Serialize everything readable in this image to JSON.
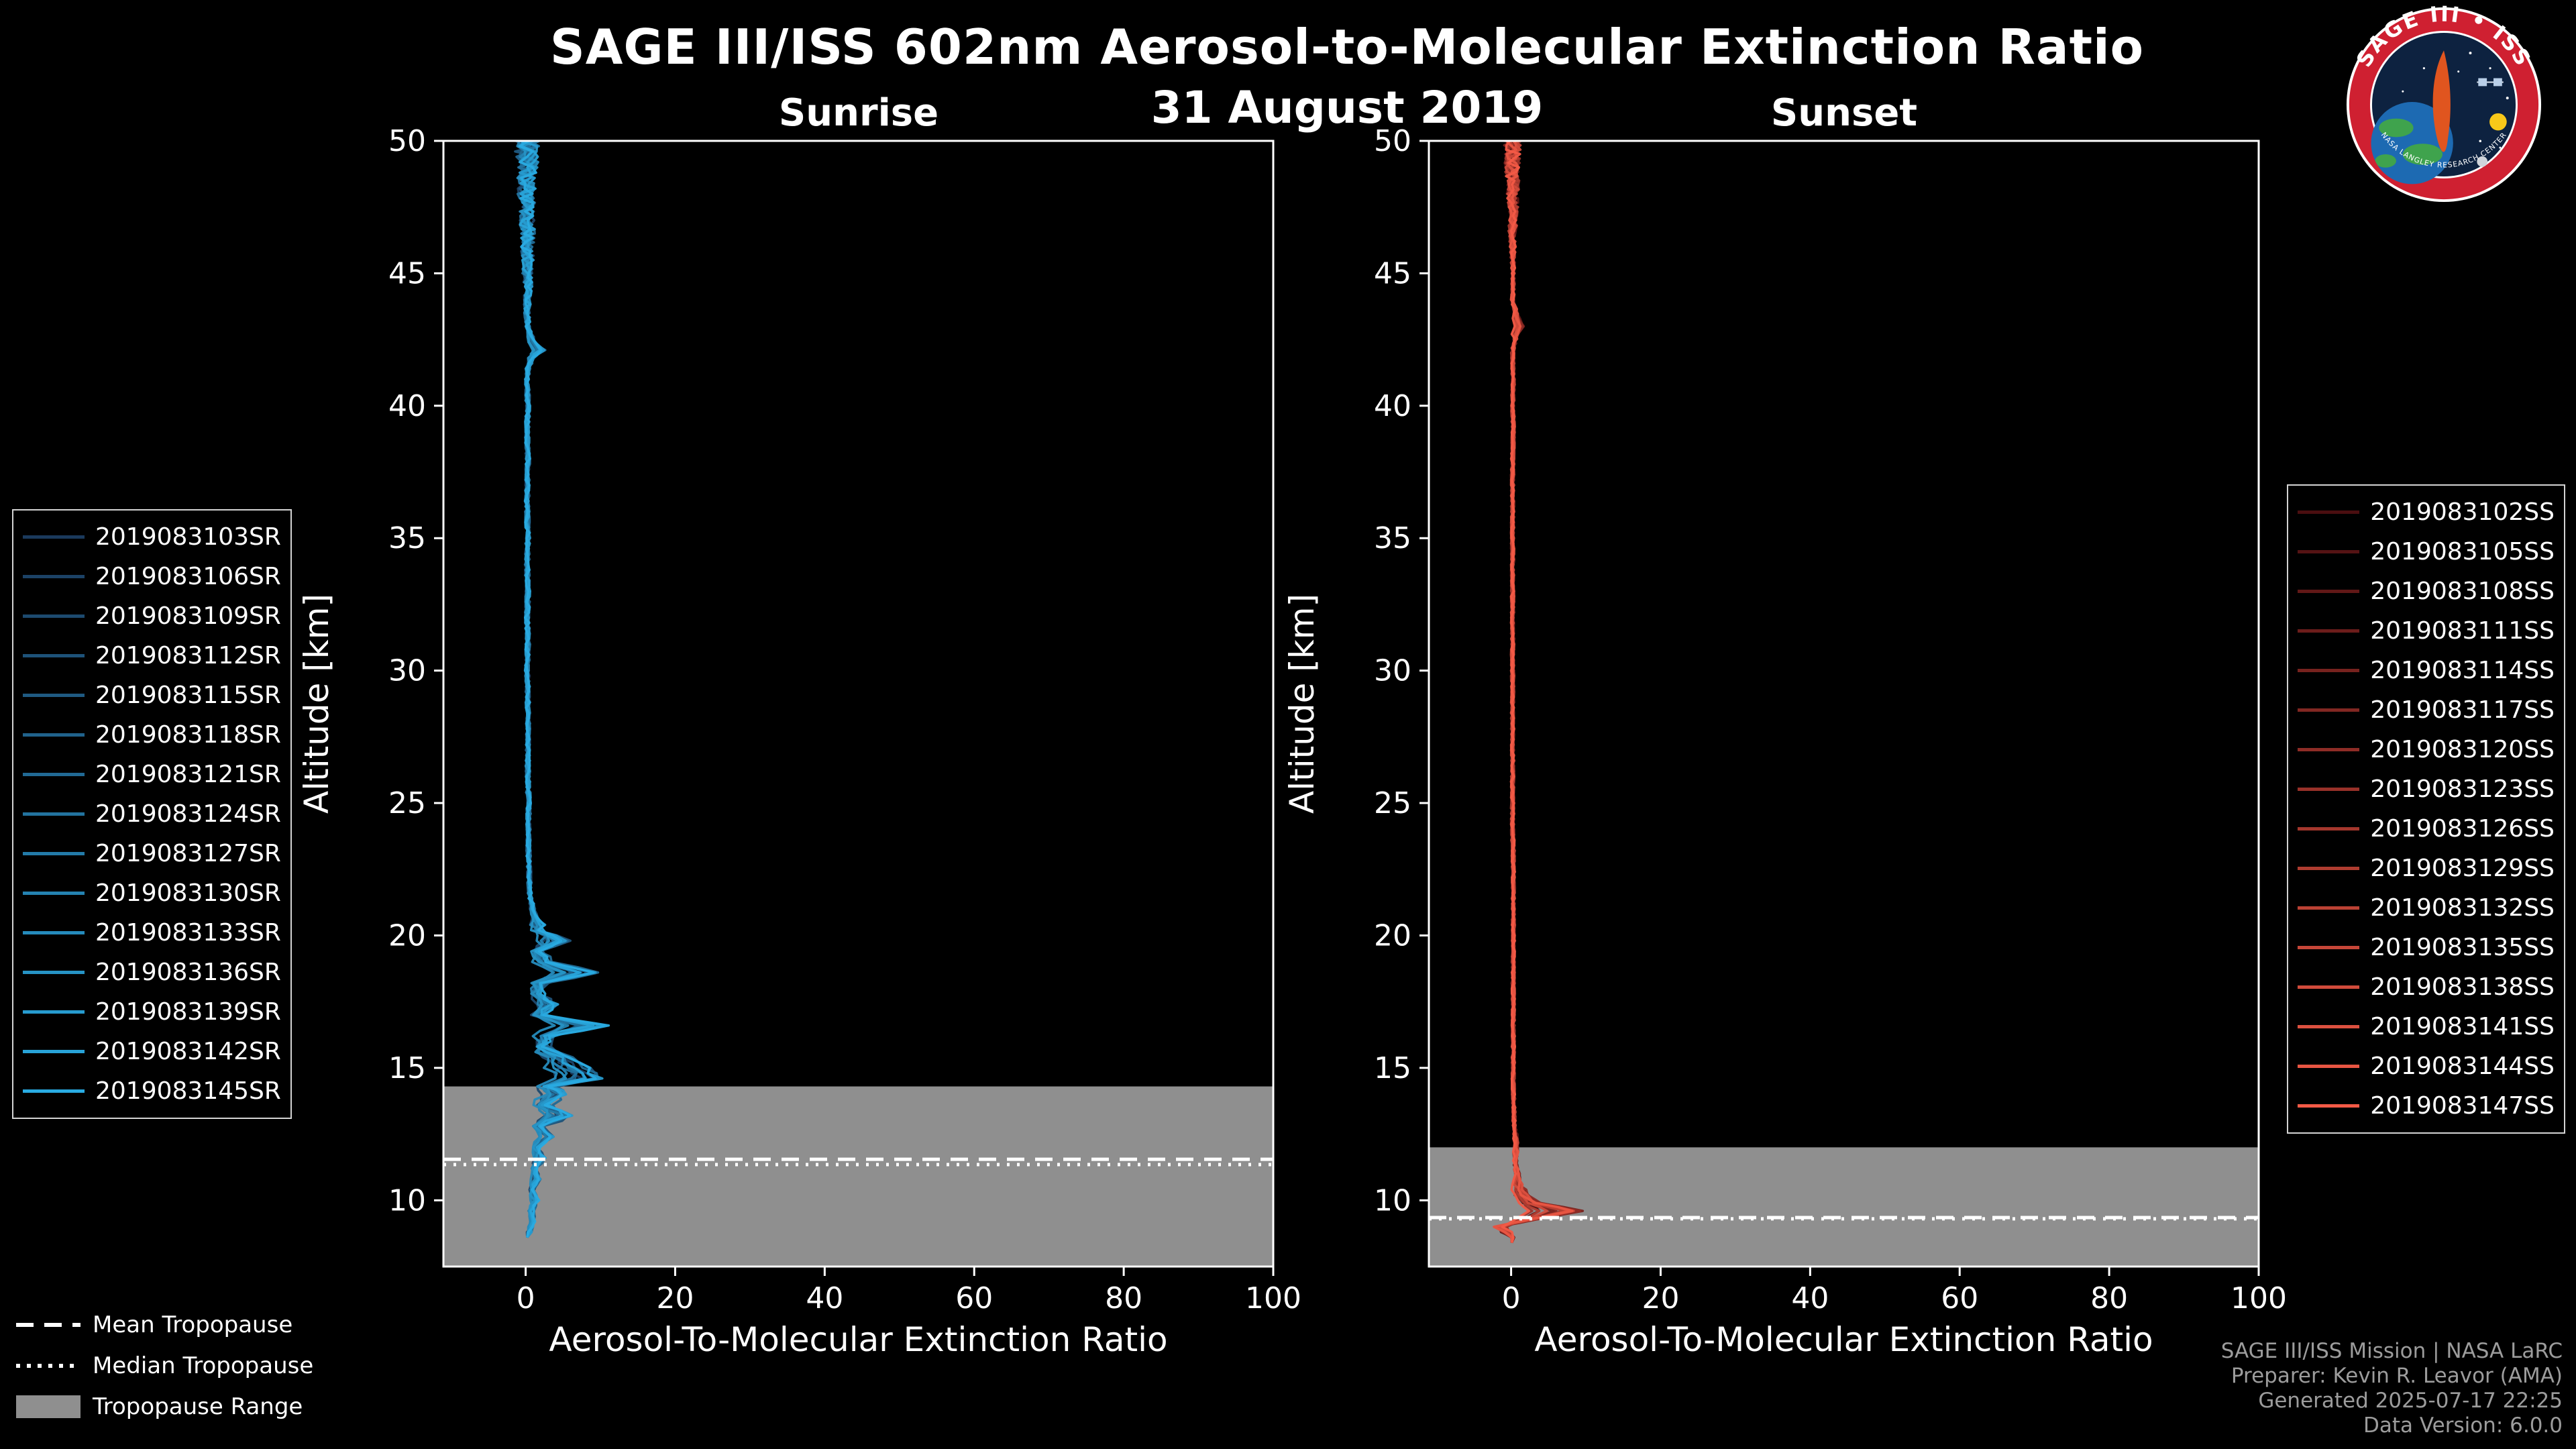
{
  "page": {
    "title": "SAGE III/ISS 602nm Aerosol-to-Molecular Extinction Ratio",
    "subtitle": "31 August 2019",
    "background": "#000000"
  },
  "logo": {
    "text": "SAGE III • ISS",
    "bottom_text": "NASA LANGLEY RESEARCH CENTER",
    "ring_color": "#cf2031",
    "inner_color": "#0d2240"
  },
  "tropopause_legend": {
    "mean_label": "Mean Tropopause",
    "median_label": "Median Tropopause",
    "range_label": "Tropopause Range"
  },
  "credits": {
    "line1": "SAGE III/ISS Mission | NASA LaRC",
    "line2": "Preparer: Kevin R. Leavor (AMA)",
    "line3": "Generated 2025-07-17 22:25",
    "line4": "Data Version: 6.0.0",
    "color": "#9c9c9c"
  },
  "chart_data": [
    {
      "type": "line",
      "title": "Sunrise",
      "xlabel": "Aerosol-To-Molecular Extinction Ratio",
      "ylabel": "Altitude [km]",
      "xlim": [
        -11,
        100
      ],
      "ylim": [
        7.5,
        50
      ],
      "xticks": [
        0,
        20,
        40,
        60,
        80,
        100
      ],
      "yticks": [
        10,
        15,
        20,
        25,
        30,
        35,
        40,
        45,
        50
      ],
      "legend_side": "left",
      "seed": 11,
      "tropopause": {
        "mean": 11.55,
        "median": 11.35,
        "range_top": 14.3,
        "range_bottom": 7.5,
        "band_color": "#8f8f8f"
      },
      "noise": {
        "base": 0.3,
        "top_amp": 1.3,
        "top_start": 43,
        "mid_from": 13,
        "mid_to": 20.5,
        "mid_amp": 0.5,
        "spike_min": 0.3,
        "spike_span": 0.95,
        "step": 0.2
      },
      "profile": [
        [
          50,
          0.3,
          0
        ],
        [
          49.6,
          0.1,
          0
        ],
        [
          49.2,
          0.4,
          0
        ],
        [
          48.8,
          0.1,
          0
        ],
        [
          48.4,
          0.3,
          0
        ],
        [
          48,
          0.1,
          0
        ],
        [
          47.5,
          0.3,
          0
        ],
        [
          47,
          0.2,
          0
        ],
        [
          46.5,
          0.3,
          0
        ],
        [
          46,
          0.2,
          0
        ],
        [
          45.5,
          0.3,
          0
        ],
        [
          45,
          0.2,
          0
        ],
        [
          44.5,
          0.3,
          0
        ],
        [
          44,
          0.2,
          0
        ],
        [
          43.5,
          0.2,
          0
        ],
        [
          43,
          0.3,
          0
        ],
        [
          42.4,
          0.2,
          0.8
        ],
        [
          42.1,
          0.3,
          1.8
        ],
        [
          41.8,
          0.2,
          0.7
        ],
        [
          41.4,
          0.3,
          0
        ],
        [
          41,
          0.2,
          0
        ],
        [
          40,
          0.3,
          0
        ],
        [
          39,
          0.2,
          0
        ],
        [
          38,
          0.3,
          0
        ],
        [
          37,
          0.2,
          0
        ],
        [
          36,
          0.2,
          0
        ],
        [
          35,
          0.3,
          0
        ],
        [
          34,
          0.2,
          0
        ],
        [
          33,
          0.3,
          0
        ],
        [
          32,
          0.2,
          0
        ],
        [
          31,
          0.3,
          0
        ],
        [
          30,
          0.2,
          0
        ],
        [
          29,
          0.3,
          0
        ],
        [
          28,
          0.3,
          0
        ],
        [
          27,
          0.3,
          0
        ],
        [
          26,
          0.3,
          0
        ],
        [
          25,
          0.4,
          0
        ],
        [
          24,
          0.4,
          0
        ],
        [
          23,
          0.4,
          0
        ],
        [
          22,
          0.5,
          0
        ],
        [
          21.4,
          0.6,
          0
        ],
        [
          20.8,
          0.7,
          0.6
        ],
        [
          20.2,
          0.8,
          1.2
        ],
        [
          19.8,
          0.6,
          4.2
        ],
        [
          19.4,
          0.8,
          1.0
        ],
        [
          19,
          0.7,
          2.2
        ],
        [
          18.6,
          0.8,
          7.2
        ],
        [
          18.2,
          0.9,
          1.6
        ],
        [
          17.8,
          0.8,
          1.0
        ],
        [
          17.4,
          0.9,
          2.4
        ],
        [
          17,
          0.8,
          1.2
        ],
        [
          16.6,
          1.0,
          8.4
        ],
        [
          16.2,
          0.9,
          2.0
        ],
        [
          15.8,
          1.0,
          1.4
        ],
        [
          15.4,
          1.1,
          3.8
        ],
        [
          15,
          1.0,
          6.2
        ],
        [
          14.6,
          1.2,
          7.8
        ],
        [
          14.3,
          1.0,
          2.4
        ],
        [
          14,
          1.2,
          3.4
        ],
        [
          13.6,
          1.0,
          1.6
        ],
        [
          13.2,
          1.1,
          4.4
        ],
        [
          12.8,
          0.9,
          1.0
        ],
        [
          12.4,
          1.0,
          2.2
        ],
        [
          12,
          0.8,
          0.8
        ],
        [
          11.6,
          0.6,
          1.6
        ],
        [
          11.2,
          0.8,
          0.5
        ],
        [
          10.8,
          0.5,
          1.1
        ],
        [
          10.4,
          0.6,
          0.3
        ],
        [
          10,
          0.5,
          0.9
        ],
        [
          9.6,
          0.3,
          0.5
        ],
        [
          9.2,
          0.4,
          0.7
        ],
        [
          8.8,
          0.2,
          0.3
        ],
        [
          8.6,
          0.2,
          0
        ]
      ],
      "series": [
        {
          "name": "2019083103SR",
          "color": "#1b3a5c"
        },
        {
          "name": "2019083106SR",
          "color": "#1c4266"
        },
        {
          "name": "2019083109SR",
          "color": "#1d4a6f"
        },
        {
          "name": "2019083112SR",
          "color": "#1e5279"
        },
        {
          "name": "2019083115SR",
          "color": "#1f5a82"
        },
        {
          "name": "2019083118SR",
          "color": "#20628c"
        },
        {
          "name": "2019083121SR",
          "color": "#216a95"
        },
        {
          "name": "2019083124SR",
          "color": "#22739f"
        },
        {
          "name": "2019083127SR",
          "color": "#237ba9"
        },
        {
          "name": "2019083130SR",
          "color": "#2483b2"
        },
        {
          "name": "2019083133SR",
          "color": "#258bbc"
        },
        {
          "name": "2019083136SR",
          "color": "#2693c5"
        },
        {
          "name": "2019083139SR",
          "color": "#279bcf"
        },
        {
          "name": "2019083142SR",
          "color": "#28a3d8"
        },
        {
          "name": "2019083145SR",
          "color": "#29abe2"
        }
      ]
    },
    {
      "type": "line",
      "title": "Sunset",
      "xlabel": "Aerosol-To-Molecular Extinction Ratio",
      "ylabel": "Altitude [km]",
      "xlim": [
        -11,
        100
      ],
      "ylim": [
        7.5,
        50
      ],
      "xticks": [
        0,
        20,
        40,
        60,
        80,
        100
      ],
      "yticks": [
        10,
        15,
        20,
        25,
        30,
        35,
        40,
        45,
        50
      ],
      "legend_side": "right",
      "seed": 99,
      "tropopause": {
        "mean": 9.35,
        "median": 9.3,
        "range_top": 12.0,
        "range_bottom": 7.5,
        "band_color": "#8f8f8f"
      },
      "noise": {
        "base": 0.22,
        "top_amp": 1.0,
        "top_start": 45,
        "mid_from": 8.8,
        "mid_to": 10.6,
        "mid_amp": 0.3,
        "spike_min": 0.15,
        "spike_span": 1.1,
        "step": 0.2
      },
      "profile": [
        [
          50,
          0.2,
          0
        ],
        [
          49.5,
          0.3,
          0
        ],
        [
          49,
          0.1,
          0
        ],
        [
          48.5,
          0.3,
          0
        ],
        [
          48,
          0.2,
          0
        ],
        [
          47.5,
          0.3,
          0
        ],
        [
          47,
          0.2,
          0
        ],
        [
          46,
          0.2,
          0
        ],
        [
          45,
          0.3,
          0
        ],
        [
          44,
          0.2,
          0
        ],
        [
          43.3,
          0.2,
          0.7
        ],
        [
          43,
          0.3,
          1.0
        ],
        [
          42.7,
          0.2,
          0.5
        ],
        [
          42,
          0.2,
          0
        ],
        [
          41,
          0.3,
          0
        ],
        [
          40,
          0.2,
          0
        ],
        [
          39,
          0.3,
          0
        ],
        [
          38,
          0.2,
          0
        ],
        [
          37,
          0.2,
          0
        ],
        [
          36,
          0.2,
          0
        ],
        [
          35,
          0.2,
          0
        ],
        [
          34,
          0.2,
          0
        ],
        [
          33,
          0.2,
          0
        ],
        [
          32,
          0.2,
          0
        ],
        [
          31,
          0.2,
          0
        ],
        [
          30,
          0.2,
          0
        ],
        [
          29,
          0.2,
          0
        ],
        [
          28,
          0.2,
          0
        ],
        [
          27,
          0.2,
          0
        ],
        [
          26,
          0.2,
          0
        ],
        [
          25,
          0.2,
          0
        ],
        [
          24,
          0.2,
          0
        ],
        [
          23,
          0.3,
          0
        ],
        [
          22,
          0.3,
          0
        ],
        [
          21,
          0.3,
          0
        ],
        [
          20,
          0.3,
          0
        ],
        [
          19,
          0.3,
          0
        ],
        [
          18,
          0.3,
          0
        ],
        [
          17,
          0.3,
          0
        ],
        [
          16,
          0.3,
          0
        ],
        [
          15,
          0.3,
          0
        ],
        [
          14,
          0.3,
          0
        ],
        [
          13.5,
          0.4,
          0
        ],
        [
          13,
          0.4,
          0
        ],
        [
          12.5,
          0.3,
          0.3
        ],
        [
          12,
          0.4,
          0.4
        ],
        [
          11.5,
          0.3,
          0.3
        ],
        [
          11,
          0.4,
          0.5
        ],
        [
          10.6,
          0.3,
          0.8
        ],
        [
          10.2,
          0.4,
          1.4
        ],
        [
          9.9,
          0.5,
          2.8
        ],
        [
          9.6,
          0.6,
          7.4
        ],
        [
          9.3,
          0.4,
          2.8
        ],
        [
          9.0,
          -0.4,
          -1.4
        ],
        [
          8.8,
          -0.2,
          -0.7
        ],
        [
          8.6,
          0.2,
          0
        ],
        [
          8.4,
          0.1,
          0
        ]
      ],
      "series": [
        {
          "name": "2019083102SS",
          "color": "#4a0e10"
        },
        {
          "name": "2019083105SS",
          "color": "#551314"
        },
        {
          "name": "2019083108SS",
          "color": "#611817"
        },
        {
          "name": "2019083111SS",
          "color": "#6c1d1b"
        },
        {
          "name": "2019083114SS",
          "color": "#77221e"
        },
        {
          "name": "2019083117SS",
          "color": "#822722"
        },
        {
          "name": "2019083120SS",
          "color": "#8e2c26"
        },
        {
          "name": "2019083123SS",
          "color": "#993129"
        },
        {
          "name": "2019083126SS",
          "color": "#a4372d"
        },
        {
          "name": "2019083129SS",
          "color": "#af3c30"
        },
        {
          "name": "2019083132SS",
          "color": "#bb4134"
        },
        {
          "name": "2019083135SS",
          "color": "#c64638"
        },
        {
          "name": "2019083138SS",
          "color": "#d14b3b"
        },
        {
          "name": "2019083141SS",
          "color": "#dc503f"
        },
        {
          "name": "2019083144SS",
          "color": "#e85542"
        },
        {
          "name": "2019083147SS",
          "color": "#f35a46"
        }
      ]
    }
  ]
}
